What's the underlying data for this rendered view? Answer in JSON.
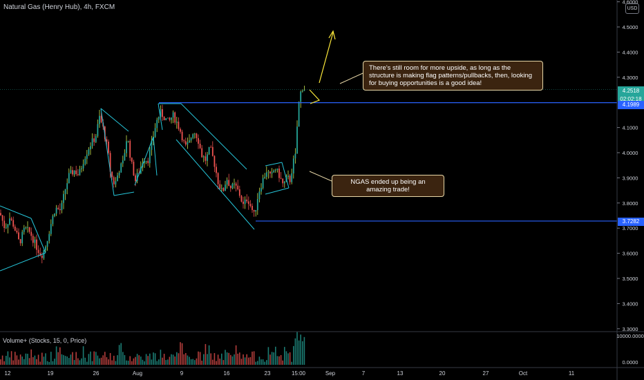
{
  "header": {
    "title": "Natural Gas (Henry Hub), 4h, FXCM"
  },
  "volume_indicator": {
    "label": "Volume+ (Stocks, 15, 0, Price)",
    "ticks": [
      "10000.0000",
      "0.0000"
    ]
  },
  "currency": "USD",
  "annotations": [
    "There's still room for more upside, as long as the structure is making flag patterns/pullbacks, then, looking for buying opportunities is a good idea!",
    "NGAS ended up being an amazing trade!"
  ],
  "price_labels": {
    "current": "4.2518",
    "countdown": "02:02:18",
    "resistance": "4.1989",
    "support": "3.7282"
  },
  "colors": {
    "up": "#26a69a",
    "down": "#ef5350",
    "wick_up": "#c8e650",
    "level_line": "#2962ff",
    "pattern_line": "#26c6da",
    "arrow": "#ffeb3b",
    "current_price": "#26a69a"
  },
  "chart_data": {
    "type": "candlestick",
    "title": "Natural Gas (Henry Hub), 4h, FXCM",
    "y_ticks": [
      "4.6000",
      "4.5000",
      "4.4000",
      "4.3000",
      "4.1000",
      "4.0000",
      "3.9000",
      "3.8000",
      "3.7000",
      "3.6000",
      "3.5000",
      "3.4000",
      "3.3000"
    ],
    "x_ticks": [
      "12",
      "19",
      "26",
      "Aug",
      "9",
      "16",
      "23",
      "15:00",
      "Sep",
      "7",
      "13",
      "20",
      "27",
      "Oct",
      "11"
    ],
    "ylim": [
      3.28,
      4.63
    ],
    "levels": [
      {
        "name": "resistance",
        "value": 4.1989
      },
      {
        "name": "support",
        "value": 3.7282
      }
    ],
    "current_price": 4.2518,
    "price_path": [
      [
        0,
        3.76
      ],
      [
        7,
        3.7
      ],
      [
        14,
        3.74
      ],
      [
        20,
        3.71
      ],
      [
        28,
        3.64
      ],
      [
        36,
        3.7
      ],
      [
        44,
        3.68
      ],
      [
        52,
        3.63
      ],
      [
        60,
        3.59
      ],
      [
        66,
        3.63
      ],
      [
        74,
        3.72
      ],
      [
        80,
        3.78
      ],
      [
        88,
        3.77
      ],
      [
        94,
        3.85
      ],
      [
        100,
        3.91
      ],
      [
        108,
        3.93
      ],
      [
        114,
        3.91
      ],
      [
        122,
        3.98
      ],
      [
        130,
        4.03
      ],
      [
        138,
        4.06
      ],
      [
        144,
        4.14
      ],
      [
        150,
        4.09
      ],
      [
        156,
        4.01
      ],
      [
        160,
        3.92
      ],
      [
        166,
        3.87
      ],
      [
        172,
        3.93
      ],
      [
        178,
        3.96
      ],
      [
        184,
        4.07
      ],
      [
        190,
        3.96
      ],
      [
        196,
        3.89
      ],
      [
        202,
        3.93
      ],
      [
        208,
        3.98
      ],
      [
        214,
        3.97
      ],
      [
        220,
        4.04
      ],
      [
        226,
        4.12
      ],
      [
        232,
        4.16
      ],
      [
        238,
        4.14
      ],
      [
        244,
        4.12
      ],
      [
        250,
        4.15
      ],
      [
        256,
        4.12
      ],
      [
        262,
        4.08
      ],
      [
        268,
        4.02
      ],
      [
        274,
        4.04
      ],
      [
        280,
        4.09
      ],
      [
        286,
        4.06
      ],
      [
        292,
        3.99
      ],
      [
        298,
        3.97
      ],
      [
        304,
        4.02
      ],
      [
        310,
        3.96
      ],
      [
        316,
        3.88
      ],
      [
        322,
        3.84
      ],
      [
        328,
        3.9
      ],
      [
        334,
        3.86
      ],
      [
        340,
        3.87
      ],
      [
        346,
        3.84
      ],
      [
        352,
        3.79
      ],
      [
        358,
        3.82
      ],
      [
        364,
        3.78
      ],
      [
        368,
        3.75
      ],
      [
        374,
        3.84
      ],
      [
        380,
        3.89
      ],
      [
        386,
        3.93
      ],
      [
        392,
        3.9
      ],
      [
        398,
        3.94
      ],
      [
        404,
        3.91
      ],
      [
        410,
        3.87
      ],
      [
        416,
        3.9
      ],
      [
        420,
        3.89
      ],
      [
        424,
        3.96
      ],
      [
        428,
        3.99
      ],
      [
        431,
        4.16
      ],
      [
        434,
        4.23
      ],
      [
        438,
        4.26
      ],
      [
        442,
        4.25
      ]
    ]
  }
}
